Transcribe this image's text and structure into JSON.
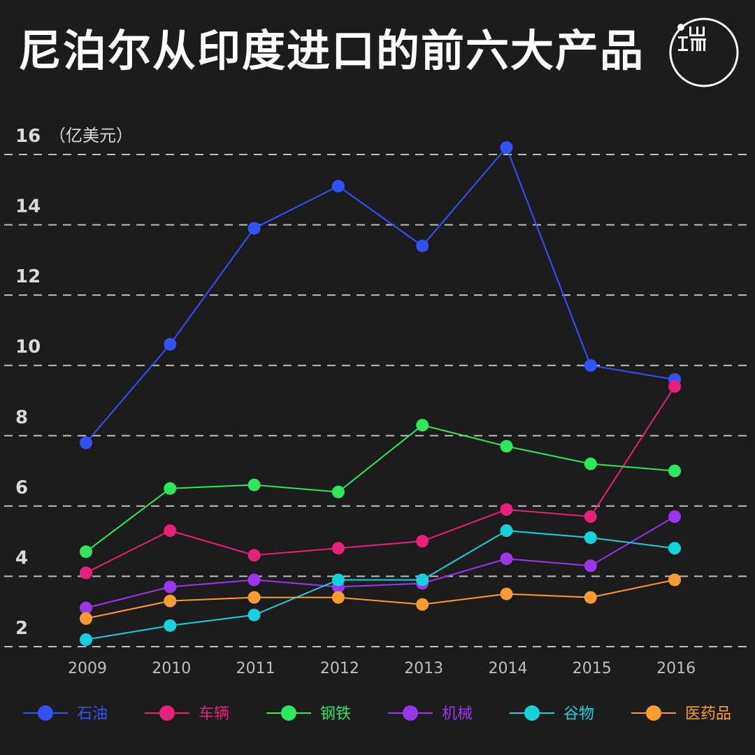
{
  "title": "尼泊尔从印度进口的前六大产品",
  "chart_data": {
    "type": "line",
    "title": "尼泊尔从印度进口的前六大产品",
    "unit": "（亿美元）",
    "xlabel": "",
    "ylabel": "",
    "ylim": [
      2,
      16
    ],
    "yticks": [
      2,
      4,
      6,
      8,
      10,
      12,
      14,
      16
    ],
    "grid": true,
    "legend_position": "bottom",
    "x": [
      "2009",
      "2010",
      "2011",
      "2012",
      "2013",
      "2014",
      "2015",
      "2016"
    ],
    "series": [
      {
        "name": "石油",
        "color": "#3352ff",
        "values": [
          7.8,
          10.6,
          13.9,
          15.1,
          13.4,
          16.2,
          10.0,
          9.6
        ]
      },
      {
        "name": "车辆",
        "color": "#e8207a",
        "values": [
          4.1,
          5.3,
          4.6,
          4.8,
          5.0,
          5.9,
          5.7,
          9.4
        ]
      },
      {
        "name": "钢铁",
        "color": "#2ee85c",
        "values": [
          4.7,
          6.5,
          6.6,
          6.4,
          8.3,
          7.7,
          7.2,
          7.0
        ]
      },
      {
        "name": "机械",
        "color": "#9a35f0",
        "values": [
          3.1,
          3.7,
          3.9,
          3.7,
          3.8,
          4.5,
          4.3,
          5.7
        ]
      },
      {
        "name": "谷物",
        "color": "#14d2dc",
        "values": [
          2.2,
          2.6,
          2.9,
          3.9,
          3.9,
          5.3,
          5.1,
          4.8
        ]
      },
      {
        "name": "医药品",
        "color": "#ff9a30",
        "values": [
          2.8,
          3.3,
          3.4,
          3.4,
          3.2,
          3.5,
          3.4,
          3.9
        ]
      }
    ]
  }
}
